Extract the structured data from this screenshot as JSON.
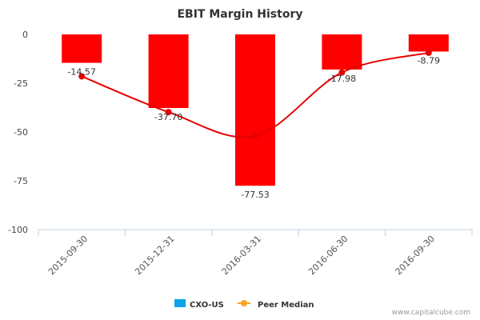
{
  "chart_data": {
    "type": "bar",
    "title": "EBIT Margin History",
    "xlabel": "",
    "ylabel": "",
    "categories": [
      "2015-09-30",
      "2015-12-31",
      "2016-03-31",
      "2016-06-30",
      "2016-09-30"
    ],
    "ylim": [
      -100,
      0
    ],
    "yticks": [
      0,
      -25,
      -50,
      -75,
      -100
    ],
    "series": [
      {
        "name": "CXO-US",
        "kind": "bar",
        "color": "#ff0000",
        "legend_color": "#0aa3e8",
        "values": [
          -14.57,
          -37.7,
          -77.53,
          -17.98,
          -8.79
        ],
        "labels": [
          "-14.57",
          "-37.70",
          "-77.53",
          "-17.98",
          "-8.79"
        ]
      },
      {
        "name": "Peer Median",
        "kind": "spline",
        "color": "#e60000",
        "legend_color": "#f5a623",
        "values": [
          -21.5,
          -39.8,
          -52.0,
          -19.5,
          -9.4
        ]
      }
    ],
    "legend_position": "bottom-center",
    "grid": false
  },
  "credit": "www.capitalcube.com"
}
